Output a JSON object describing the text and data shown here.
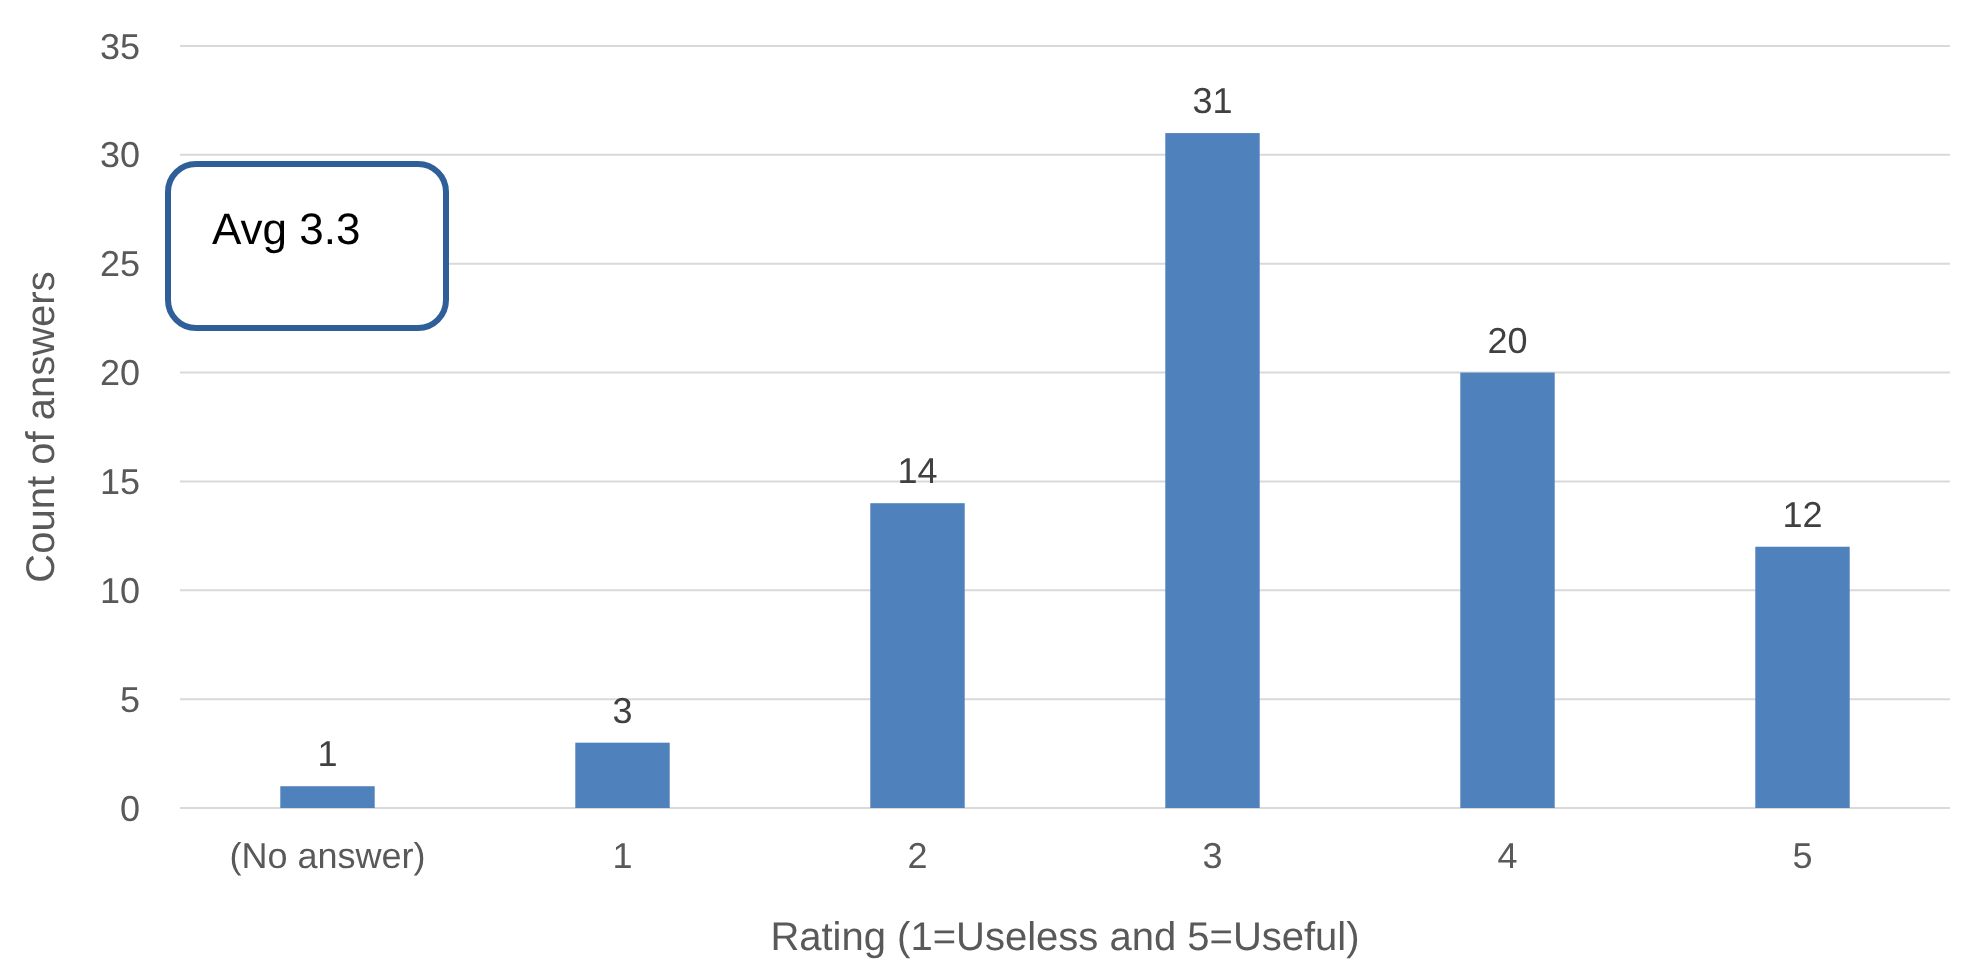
{
  "chart_data": {
    "type": "bar",
    "xlabel": "Rating (1=Useless and 5=Useful)",
    "ylabel": "Count of answers",
    "categories": [
      "(No answer)",
      "1",
      "2",
      "3",
      "4",
      "5"
    ],
    "values": [
      1,
      3,
      14,
      31,
      20,
      12
    ],
    "color": "#4f81bd",
    "ylim": [
      0,
      35
    ],
    "yticks": [
      0,
      5,
      10,
      15,
      20,
      25,
      30,
      35
    ],
    "grid": "y",
    "data_labels": true,
    "annotations": [
      "Avg 3.3"
    ]
  }
}
